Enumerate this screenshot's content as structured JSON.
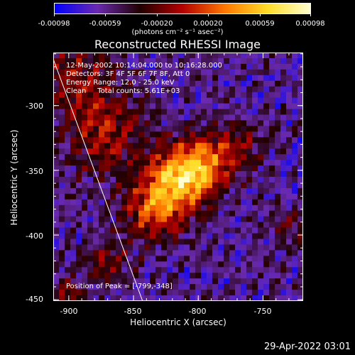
{
  "chart_data": {
    "type": "heatmap",
    "title": "Reconstructed RHESSI Image",
    "xlabel": "Heliocentric X (arcsec)",
    "ylabel": "Heliocentric Y (arcsec)",
    "xlim": [
      -912,
      -719
    ],
    "ylim": [
      -451,
      -259
    ],
    "x_ticks": [
      -900,
      -850,
      -800,
      -750
    ],
    "y_ticks": [
      -300,
      -350,
      -400,
      -450
    ],
    "colorbar": {
      "range": [
        -0.00098,
        0.00098
      ],
      "tick_labels": [
        "-0.00098",
        "-0.00059",
        "-0.00020",
        "0.00020",
        "0.00059",
        "0.00098"
      ],
      "units": "(photons cm⁻² s⁻¹ asec⁻²)",
      "colormap_stops": [
        "#0000ff",
        "#6a2ab0",
        "#200000",
        "#b40000",
        "#ff7800",
        "#ffdc28",
        "#ffffd0"
      ]
    },
    "info_lines": [
      "12-May-2002 10:14:04.000 to 10:16:28.000",
      "Detectors: 3F 4F 5F 6F 7F 8F, Att 0",
      "Energy Range: 12.0 - 25.0 keV",
      "Clean     Total counts: 5.61E+03"
    ],
    "peak_label": "Position of Peak = [-799,-348]",
    "peak": [
      -799,
      -348
    ],
    "sources": [
      {
        "x": -800,
        "y": -348,
        "peak": 0.00098,
        "sigma": 16
      },
      {
        "x": -822,
        "y": -360,
        "peak": 0.0008,
        "sigma": 18
      },
      {
        "x": -835,
        "y": -385,
        "peak": 0.00065,
        "sigma": 15
      },
      {
        "x": -875,
        "y": -320,
        "peak": 0.00055,
        "sigma": 22
      },
      {
        "x": -895,
        "y": -275,
        "peak": 0.00045,
        "sigma": 18
      },
      {
        "x": -770,
        "y": -330,
        "peak": 0.0004,
        "sigma": 14
      },
      {
        "x": -870,
        "y": -420,
        "peak": 0.0004,
        "sigma": 12
      },
      {
        "x": -730,
        "y": -395,
        "peak": 0.00035,
        "sigma": 10
      },
      {
        "x": -900,
        "y": -445,
        "peak": 0.0005,
        "sigma": 8
      }
    ],
    "limb_line": [
      [
        -912,
        -264
      ],
      [
        -843,
        -451
      ]
    ]
  },
  "footer_timestamp": "29-Apr-2022 03:01"
}
